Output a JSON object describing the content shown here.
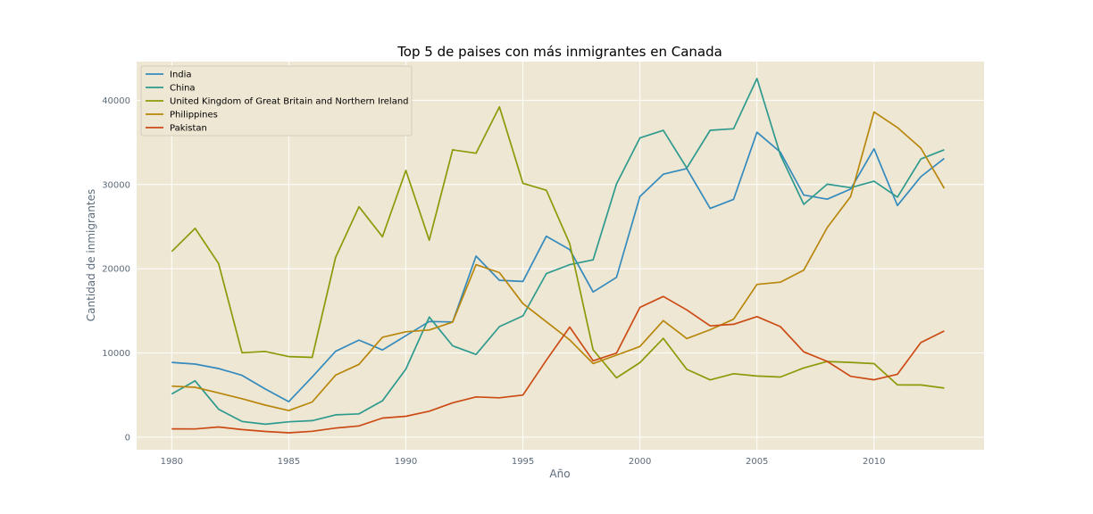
{
  "chart_data": {
    "type": "line",
    "title": "Top 5 de paises con más inmigrantes en Canada",
    "xlabel": "Año",
    "ylabel": "Cantidad de inmigrantes",
    "xlim": [
      1978.5,
      2014.7
    ],
    "ylim": [
      -1500,
      44600
    ],
    "xticks": [
      1980,
      1985,
      1990,
      1995,
      2000,
      2005,
      2010
    ],
    "yticks": [
      0,
      10000,
      20000,
      30000,
      40000
    ],
    "grid": true,
    "legend_position": "top-left",
    "x": [
      1980,
      1981,
      1982,
      1983,
      1984,
      1985,
      1986,
      1987,
      1988,
      1989,
      1990,
      1991,
      1992,
      1993,
      1994,
      1995,
      1996,
      1997,
      1998,
      1999,
      2000,
      2001,
      2002,
      2003,
      2004,
      2005,
      2006,
      2007,
      2008,
      2009,
      2010,
      2011,
      2012,
      2013
    ],
    "series": [
      {
        "name": "India",
        "color": "#348ABD",
        "values": [
          8880,
          8670,
          8147,
          7338,
          5704,
          4211,
          7150,
          10189,
          11522,
          10343,
          12041,
          13734,
          13673,
          21496,
          18620,
          18489,
          23859,
          22268,
          17241,
          18974,
          28572,
          31223,
          31889,
          27155,
          28235,
          36210,
          33848,
          28742,
          28261,
          29456,
          34235,
          27509,
          30933,
          33087
        ]
      },
      {
        "name": "China",
        "color": "#2E9A8E",
        "values": [
          5123,
          6682,
          3308,
          1863,
          1527,
          1816,
          1960,
          2643,
          2758,
          4323,
          8076,
          14255,
          10846,
          9817,
          13128,
          14398,
          19415,
          20475,
          21049,
          30069,
          35529,
          36434,
          31961,
          36439,
          36619,
          42584,
          33518,
          27642,
          30037,
          29622,
          30391,
          28502,
          33024,
          34129
        ]
      },
      {
        "name": "United Kingdom of Great Britain and Northern Ireland",
        "color": "#8B9A08",
        "values": [
          22045,
          24796,
          20620,
          10015,
          10170,
          9564,
          9470,
          21337,
          27359,
          23795,
          31668,
          23380,
          34123,
          33720,
          39231,
          30145,
          29322,
          22965,
          10367,
          7045,
          8840,
          11728,
          8046,
          6797,
          7533,
          7258,
          7140,
          8216,
          8979,
          8876,
          8724,
          6204,
          6195,
          5827
        ]
      },
      {
        "name": "Philippines",
        "color": "#B8860B",
        "values": [
          6051,
          5921,
          5249,
          4562,
          3801,
          3150,
          4166,
          7360,
          8639,
          11865,
          12509,
          12718,
          13670,
          20479,
          19532,
          15864,
          13692,
          11549,
          8735,
          9734,
          10763,
          13836,
          11707,
          12758,
          14004,
          18139,
          18400,
          19837,
          24887,
          28573,
          38617,
          36765,
          34315,
          29544
        ]
      },
      {
        "name": "Pakistan",
        "color": "#CC4A14",
        "values": [
          978,
          972,
          1201,
          900,
          668,
          514,
          691,
          1072,
          1334,
          2261,
          2470,
          3079,
          4071,
          4777,
          4666,
          4994,
          9125,
          13073,
          9068,
          9979,
          15400,
          16708,
          15110,
          13205,
          13399,
          14314,
          13127,
          10124,
          8994,
          7217,
          6811,
          7468,
          11227,
          12603
        ]
      }
    ]
  }
}
